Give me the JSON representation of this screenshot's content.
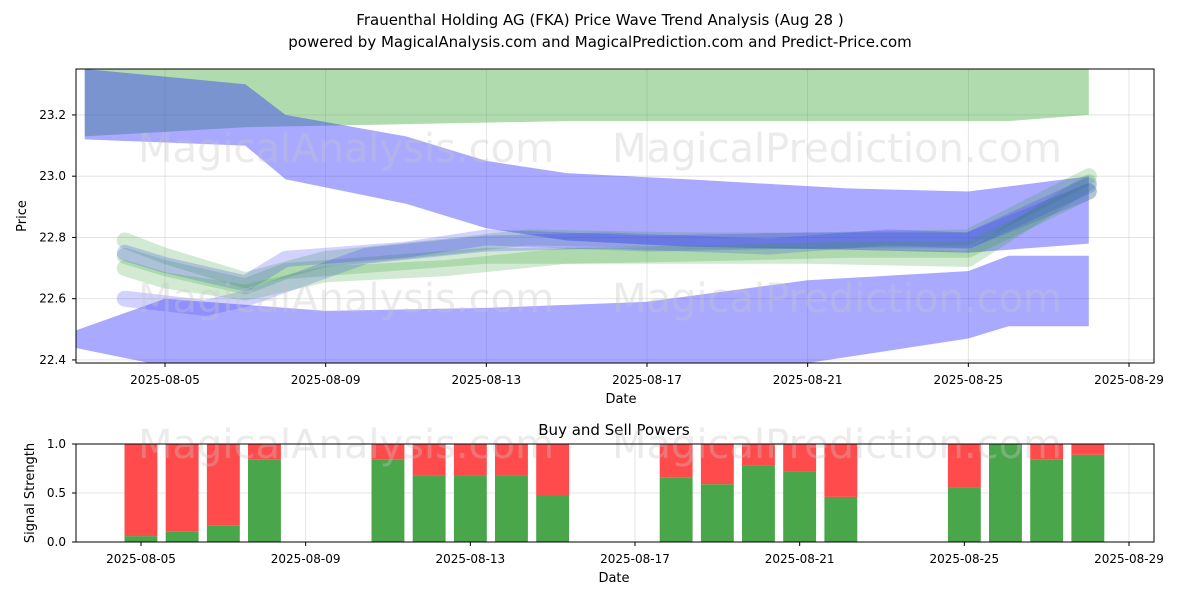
{
  "title_line1": "Frauenthal Holding AG (FKA) Price Wave Trend Analysis (Aug 28 )",
  "title_line2": "powered by MagicalAnalysis.com and MagicalPrediction.com and Predict-Price.com",
  "watermarks": [
    "MagicalAnalysis.com",
    "MagicalPrediction.com"
  ],
  "colors": {
    "green": "#2ca02c",
    "blue": "#3333ff",
    "buy": "#4aa64a",
    "sell": "#ff4b4b"
  },
  "chart_data": [
    {
      "type": "area",
      "xlabel": "Date",
      "ylabel": "Price",
      "x_range": [
        "2025-08-02",
        "2025-08-29"
      ],
      "ylim": [
        22.39,
        23.35
      ],
      "y_ticks": [
        "22.4",
        "22.6",
        "22.8",
        "23.0",
        "23.2"
      ],
      "x_ticks": [
        "2025-08-05",
        "2025-08-09",
        "2025-08-13",
        "2025-08-17",
        "2025-08-21",
        "2025-08-25",
        "2025-08-29"
      ],
      "grid": true,
      "bands": [
        {
          "color": "green",
          "x": [
            "2025-08-03",
            "2025-08-07",
            "2025-08-11",
            "2025-08-15",
            "2025-08-20",
            "2025-08-26",
            "2025-08-28"
          ],
          "upper": [
            23.35,
            23.35,
            23.35,
            23.35,
            23.35,
            23.35,
            23.35
          ],
          "lower": [
            23.13,
            23.16,
            23.17,
            23.18,
            23.18,
            23.18,
            23.2
          ]
        },
        {
          "color": "blue",
          "x": [
            "2025-08-03",
            "2025-08-07",
            "2025-08-08",
            "2025-08-11",
            "2025-08-13",
            "2025-08-15",
            "2025-08-18",
            "2025-08-22",
            "2025-08-25",
            "2025-08-28"
          ],
          "upper": [
            23.35,
            23.3,
            23.2,
            23.13,
            23.05,
            23.01,
            22.99,
            22.96,
            22.95,
            23.0
          ],
          "lower": [
            23.12,
            23.1,
            22.99,
            22.91,
            22.83,
            22.79,
            22.77,
            22.76,
            22.75,
            22.78
          ]
        },
        {
          "color": "blue",
          "x": [
            "2025-08-02",
            "2025-08-05",
            "2025-08-09",
            "2025-08-13",
            "2025-08-17",
            "2025-08-21",
            "2025-08-25",
            "2025-08-26",
            "2025-08-28"
          ],
          "upper": [
            22.46,
            22.6,
            22.56,
            22.57,
            22.59,
            22.66,
            22.69,
            22.74,
            22.74
          ],
          "lower": [
            22.46,
            22.38,
            22.36,
            22.36,
            22.36,
            22.39,
            22.47,
            22.51,
            22.51
          ]
        }
      ],
      "series": [
        {
          "color": "green",
          "x": [
            "2025-08-04",
            "2025-08-05",
            "2025-08-07",
            "2025-08-08",
            "2025-08-11",
            "2025-08-13",
            "2025-08-17",
            "2025-08-21",
            "2025-08-25",
            "2025-08-28"
          ],
          "y": [
            22.74,
            22.7,
            22.64,
            22.69,
            22.72,
            22.74,
            22.74,
            22.74,
            22.73,
            22.98
          ]
        },
        {
          "color": "green",
          "x": [
            "2025-08-04",
            "2025-08-05",
            "2025-08-07",
            "2025-08-09",
            "2025-08-12",
            "2025-08-14",
            "2025-08-18",
            "2025-08-21",
            "2025-08-25",
            "2025-08-28"
          ],
          "y": [
            22.79,
            22.74,
            22.66,
            22.73,
            22.77,
            22.8,
            22.79,
            22.79,
            22.8,
            23.0
          ]
        },
        {
          "color": "blue",
          "x": [
            "2025-08-04",
            "2025-08-05",
            "2025-08-07",
            "2025-08-08",
            "2025-08-11",
            "2025-08-13",
            "2025-08-17",
            "2025-08-21",
            "2025-08-25",
            "2025-08-28"
          ],
          "y": [
            22.75,
            22.71,
            22.65,
            22.73,
            22.76,
            22.8,
            22.78,
            22.79,
            22.79,
            22.95
          ]
        },
        {
          "color": "blue",
          "x": [
            "2025-08-04",
            "2025-08-06",
            "2025-08-07",
            "2025-08-10",
            "2025-08-13",
            "2025-08-16",
            "2025-08-20",
            "2025-08-23",
            "2025-08-25",
            "2025-08-28"
          ],
          "y": [
            22.6,
            22.57,
            22.6,
            22.74,
            22.78,
            22.79,
            22.77,
            22.8,
            22.79,
            22.97
          ]
        },
        {
          "color": "green",
          "x": [
            "2025-08-04",
            "2025-08-05",
            "2025-08-07",
            "2025-08-09",
            "2025-08-12",
            "2025-08-15",
            "2025-08-19",
            "2025-08-22",
            "2025-08-25",
            "2025-08-28"
          ],
          "y": [
            22.7,
            22.66,
            22.62,
            22.68,
            22.7,
            22.74,
            22.75,
            22.76,
            22.76,
            22.95
          ]
        }
      ]
    },
    {
      "type": "bar",
      "title": "Buy and Sell Powers",
      "xlabel": "Date",
      "ylabel": "Signal Strength",
      "ylim": [
        0,
        1.0
      ],
      "y_ticks": [
        "0.0",
        "0.5",
        "1.0"
      ],
      "x_ticks": [
        "2025-08-05",
        "2025-08-09",
        "2025-08-13",
        "2025-08-17",
        "2025-08-21",
        "2025-08-25",
        "2025-08-29"
      ],
      "grid": true,
      "dates": [
        "2025-08-05",
        "2025-08-06",
        "2025-08-07",
        "2025-08-08",
        "2025-08-11",
        "2025-08-12",
        "2025-08-13",
        "2025-08-14",
        "2025-08-15",
        "2025-08-18",
        "2025-08-19",
        "2025-08-20",
        "2025-08-21",
        "2025-08-22",
        "2025-08-25",
        "2025-08-26",
        "2025-08-27",
        "2025-08-28"
      ],
      "buy": [
        0.06,
        0.11,
        0.17,
        0.84,
        0.84,
        0.68,
        0.68,
        0.68,
        0.48,
        0.66,
        0.59,
        0.78,
        0.72,
        0.46,
        0.56,
        1.0,
        0.84,
        0.89
      ],
      "sell": [
        0.94,
        0.89,
        0.83,
        0.16,
        0.16,
        0.32,
        0.32,
        0.32,
        0.52,
        0.34,
        0.41,
        0.22,
        0.28,
        0.54,
        0.44,
        0.0,
        0.16,
        0.11
      ]
    }
  ]
}
